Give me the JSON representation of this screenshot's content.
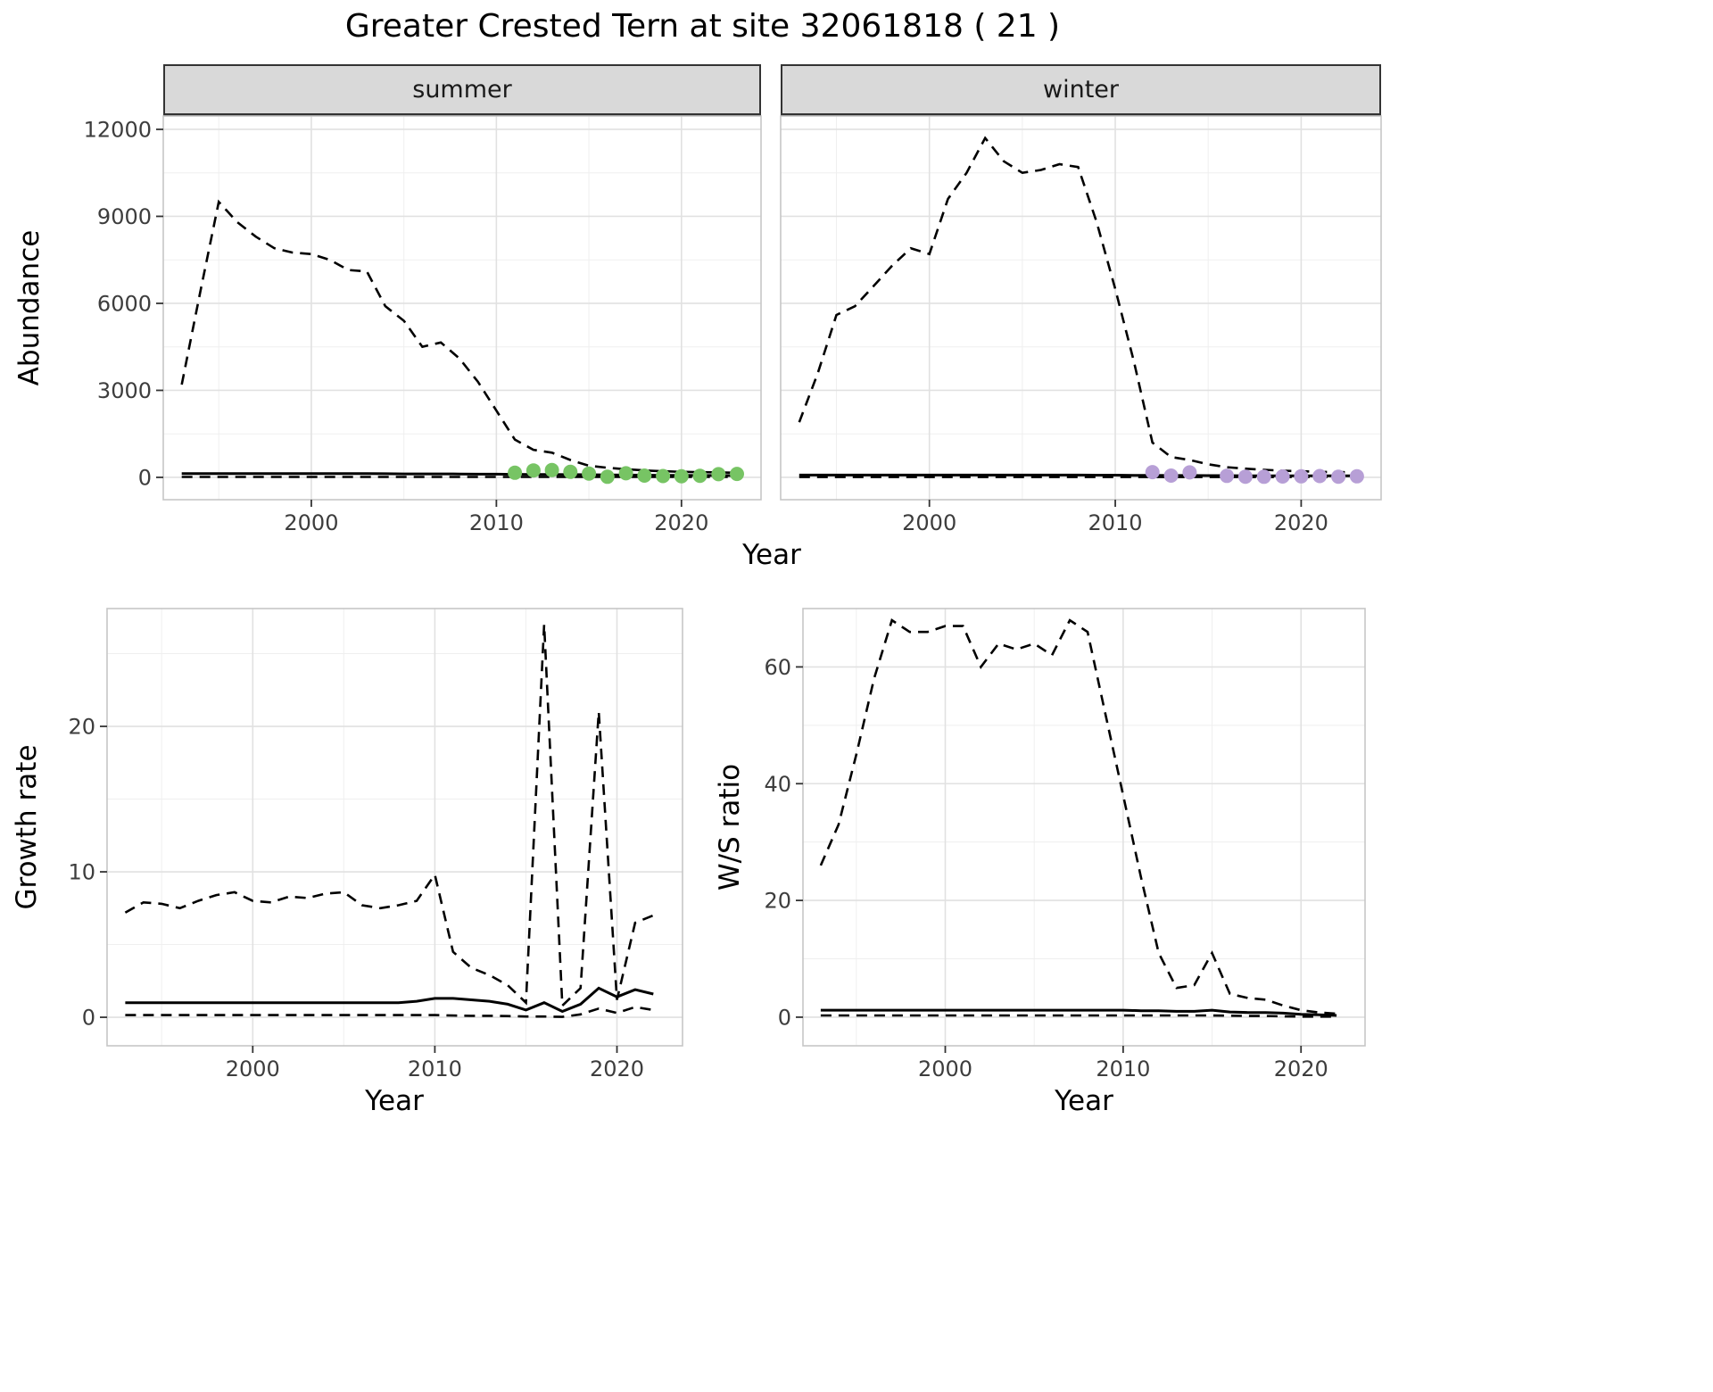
{
  "title": "Greater Crested Tern at site 32061818 ( 21 )",
  "colors": {
    "line": "#000000",
    "summer_point": "#77c464",
    "winter_point": "#b79fd6",
    "grid_major": "#e1e1e1",
    "grid_minor": "#efefef",
    "panel_border": "#c6c6c6",
    "strip_bg": "#d9d9d9",
    "strip_border": "#333333",
    "tick_mark": "#333333",
    "tick_label": "#3d3d3d"
  },
  "chart_data": [
    {
      "type": "line",
      "name": "abundance-summer",
      "facet": "summer",
      "ylabel": "Abundance",
      "xlabel": "Year",
      "xlim": [
        1992,
        2024.3
      ],
      "ylim": [
        -770,
        12460
      ],
      "xticks": [
        2000,
        2010,
        2020
      ],
      "yticks": [
        0,
        3000,
        6000,
        9000,
        12000
      ],
      "x": [
        1993,
        1994,
        1995,
        1996,
        1997,
        1998,
        1999,
        2000,
        2001,
        2002,
        2003,
        2004,
        2005,
        2006,
        2007,
        2008,
        2009,
        2010,
        2011,
        2012,
        2013,
        2014,
        2015,
        2016,
        2017,
        2018,
        2019,
        2020,
        2021,
        2022,
        2023
      ],
      "series": [
        {
          "name": "upper_ci",
          "style": "dashed",
          "values": [
            3200,
            6400,
            9500,
            8800,
            8300,
            7900,
            7750,
            7700,
            7500,
            7150,
            7100,
            5900,
            5400,
            4500,
            4650,
            4100,
            3300,
            2300,
            1300,
            950,
            850,
            600,
            400,
            330,
            280,
            240,
            210,
            190,
            180,
            170,
            160
          ]
        },
        {
          "name": "mean",
          "style": "solid",
          "values": [
            130,
            130,
            130,
            130,
            130,
            130,
            130,
            130,
            130,
            130,
            130,
            125,
            120,
            120,
            120,
            115,
            110,
            110,
            105,
            100,
            100,
            95,
            90,
            85,
            80,
            75,
            70,
            70,
            65,
            65,
            60
          ]
        },
        {
          "name": "lower_ci",
          "style": "dashed",
          "values": [
            15,
            15,
            15,
            15,
            15,
            15,
            15,
            15,
            15,
            15,
            15,
            15,
            15,
            15,
            15,
            15,
            15,
            15,
            15,
            15,
            15,
            15,
            15,
            15,
            15,
            15,
            15,
            15,
            15,
            15,
            15
          ]
        }
      ],
      "points": {
        "name": "observed-count",
        "color": "#77c464",
        "x": [
          2011,
          2012,
          2013,
          2014,
          2015,
          2016,
          2017,
          2018,
          2019,
          2020,
          2021,
          2022,
          2023
        ],
        "y": [
          160,
          240,
          250,
          190,
          130,
          20,
          140,
          60,
          45,
          40,
          55,
          110,
          120
        ]
      }
    },
    {
      "type": "line",
      "name": "abundance-winter",
      "facet": "winter",
      "ylabel": "Abundance",
      "xlabel": "Year",
      "xlim": [
        1992,
        2024.3
      ],
      "ylim": [
        -770,
        12460
      ],
      "xticks": [
        2000,
        2010,
        2020
      ],
      "yticks": [
        0,
        3000,
        6000,
        9000,
        12000
      ],
      "x": [
        1993,
        1994,
        1995,
        1996,
        1997,
        1998,
        1999,
        2000,
        2001,
        2002,
        2003,
        2004,
        2005,
        2006,
        2007,
        2008,
        2009,
        2010,
        2011,
        2012,
        2013,
        2014,
        2015,
        2016,
        2017,
        2018,
        2019,
        2020,
        2021,
        2022,
        2023
      ],
      "series": [
        {
          "name": "upper_ci",
          "style": "dashed",
          "values": [
            1900,
            3600,
            5600,
            5900,
            6600,
            7300,
            7900,
            7700,
            9600,
            10500,
            11700,
            10900,
            10500,
            10600,
            10800,
            10700,
            8800,
            6500,
            4000,
            1200,
            700,
            600,
            450,
            350,
            300,
            260,
            230,
            210,
            190,
            180,
            170
          ]
        },
        {
          "name": "mean",
          "style": "solid",
          "values": [
            80,
            80,
            80,
            80,
            80,
            80,
            80,
            80,
            80,
            80,
            80,
            80,
            80,
            80,
            80,
            80,
            75,
            75,
            70,
            70,
            65,
            65,
            60,
            60,
            55,
            55,
            55,
            50,
            50,
            50,
            50
          ]
        },
        {
          "name": "lower_ci",
          "style": "dashed",
          "values": [
            10,
            10,
            10,
            10,
            10,
            10,
            10,
            10,
            10,
            10,
            10,
            10,
            10,
            10,
            10,
            10,
            10,
            10,
            10,
            10,
            10,
            10,
            10,
            10,
            10,
            10,
            10,
            10,
            10,
            10,
            10
          ]
        }
      ],
      "points": {
        "name": "observed-count",
        "color": "#b79fd6",
        "x": [
          2012,
          2013,
          2014,
          2016,
          2017,
          2018,
          2019,
          2020,
          2021,
          2022,
          2023
        ],
        "y": [
          180,
          60,
          170,
          50,
          25,
          20,
          30,
          35,
          45,
          25,
          35
        ]
      }
    },
    {
      "type": "line",
      "name": "growth-rate",
      "ylabel": "Growth rate",
      "xlabel": "Year",
      "xlim": [
        1992,
        2023.6
      ],
      "ylim": [
        -1.96,
        28.1
      ],
      "xticks": [
        2000,
        2010,
        2020
      ],
      "yticks": [
        0,
        10,
        20
      ],
      "x": [
        1993,
        1994,
        1995,
        1996,
        1997,
        1998,
        1999,
        2000,
        2001,
        2002,
        2003,
        2004,
        2005,
        2006,
        2007,
        2008,
        2009,
        2010,
        2011,
        2012,
        2013,
        2014,
        2015,
        2016,
        2017,
        2018,
        2019,
        2020,
        2021,
        2022
      ],
      "series": [
        {
          "name": "upper_ci",
          "style": "dashed",
          "values": [
            7.2,
            7.9,
            7.8,
            7.5,
            8.0,
            8.4,
            8.6,
            8.0,
            7.9,
            8.3,
            8.2,
            8.5,
            8.6,
            7.7,
            7.5,
            7.7,
            8.0,
            9.8,
            4.5,
            3.4,
            2.9,
            2.2,
            1.0,
            27.0,
            0.8,
            2.0,
            21.0,
            1.2,
            6.5,
            7.0
          ]
        },
        {
          "name": "mean",
          "style": "solid",
          "values": [
            1.0,
            1.0,
            1.0,
            1.0,
            1.0,
            1.0,
            1.0,
            1.0,
            1.0,
            1.0,
            1.0,
            1.0,
            1.0,
            1.0,
            1.0,
            1.0,
            1.1,
            1.3,
            1.3,
            1.2,
            1.1,
            0.9,
            0.5,
            1.0,
            0.4,
            0.9,
            2.0,
            1.4,
            1.9,
            1.6
          ]
        },
        {
          "name": "lower_ci",
          "style": "dashed",
          "values": [
            0.15,
            0.15,
            0.15,
            0.15,
            0.15,
            0.15,
            0.15,
            0.15,
            0.15,
            0.15,
            0.15,
            0.15,
            0.15,
            0.15,
            0.15,
            0.15,
            0.15,
            0.15,
            0.12,
            0.1,
            0.1,
            0.08,
            0.05,
            0.05,
            0.03,
            0.2,
            0.6,
            0.3,
            0.7,
            0.5
          ]
        }
      ]
    },
    {
      "type": "line",
      "name": "ws-ratio",
      "ylabel": "W/S ratio",
      "xlabel": "Year",
      "xlim": [
        1992,
        2023.6
      ],
      "ylim": [
        -4.9,
        70
      ],
      "xticks": [
        2000,
        2010,
        2020
      ],
      "yticks": [
        0,
        20,
        40,
        60
      ],
      "x": [
        1993,
        1994,
        1995,
        1996,
        1997,
        1998,
        1999,
        2000,
        2001,
        2002,
        2003,
        2004,
        2005,
        2006,
        2007,
        2008,
        2009,
        2010,
        2011,
        2012,
        2013,
        2014,
        2015,
        2016,
        2017,
        2018,
        2019,
        2020,
        2021,
        2022
      ],
      "series": [
        {
          "name": "upper_ci",
          "style": "dashed",
          "values": [
            26,
            33,
            45,
            58,
            68,
            66,
            66,
            67,
            67,
            60,
            64,
            63,
            64,
            62,
            68,
            66,
            52,
            38,
            24,
            11,
            5,
            5.5,
            11,
            4,
            3.3,
            3,
            2,
            1.2,
            0.8,
            0.6
          ]
        },
        {
          "name": "mean",
          "style": "solid",
          "values": [
            1.2,
            1.2,
            1.2,
            1.2,
            1.2,
            1.2,
            1.2,
            1.2,
            1.2,
            1.2,
            1.2,
            1.2,
            1.2,
            1.2,
            1.2,
            1.2,
            1.2,
            1.2,
            1.1,
            1.1,
            1.0,
            1.0,
            1.2,
            0.9,
            0.8,
            0.8,
            0.7,
            0.5,
            0.4,
            0.3
          ]
        },
        {
          "name": "lower_ci",
          "style": "dashed",
          "values": [
            0.3,
            0.3,
            0.3,
            0.3,
            0.3,
            0.3,
            0.3,
            0.3,
            0.3,
            0.3,
            0.3,
            0.3,
            0.3,
            0.3,
            0.3,
            0.3,
            0.3,
            0.3,
            0.3,
            0.3,
            0.3,
            0.3,
            0.3,
            0.25,
            0.2,
            0.2,
            0.15,
            0.1,
            0.1,
            0.1
          ]
        }
      ]
    }
  ]
}
